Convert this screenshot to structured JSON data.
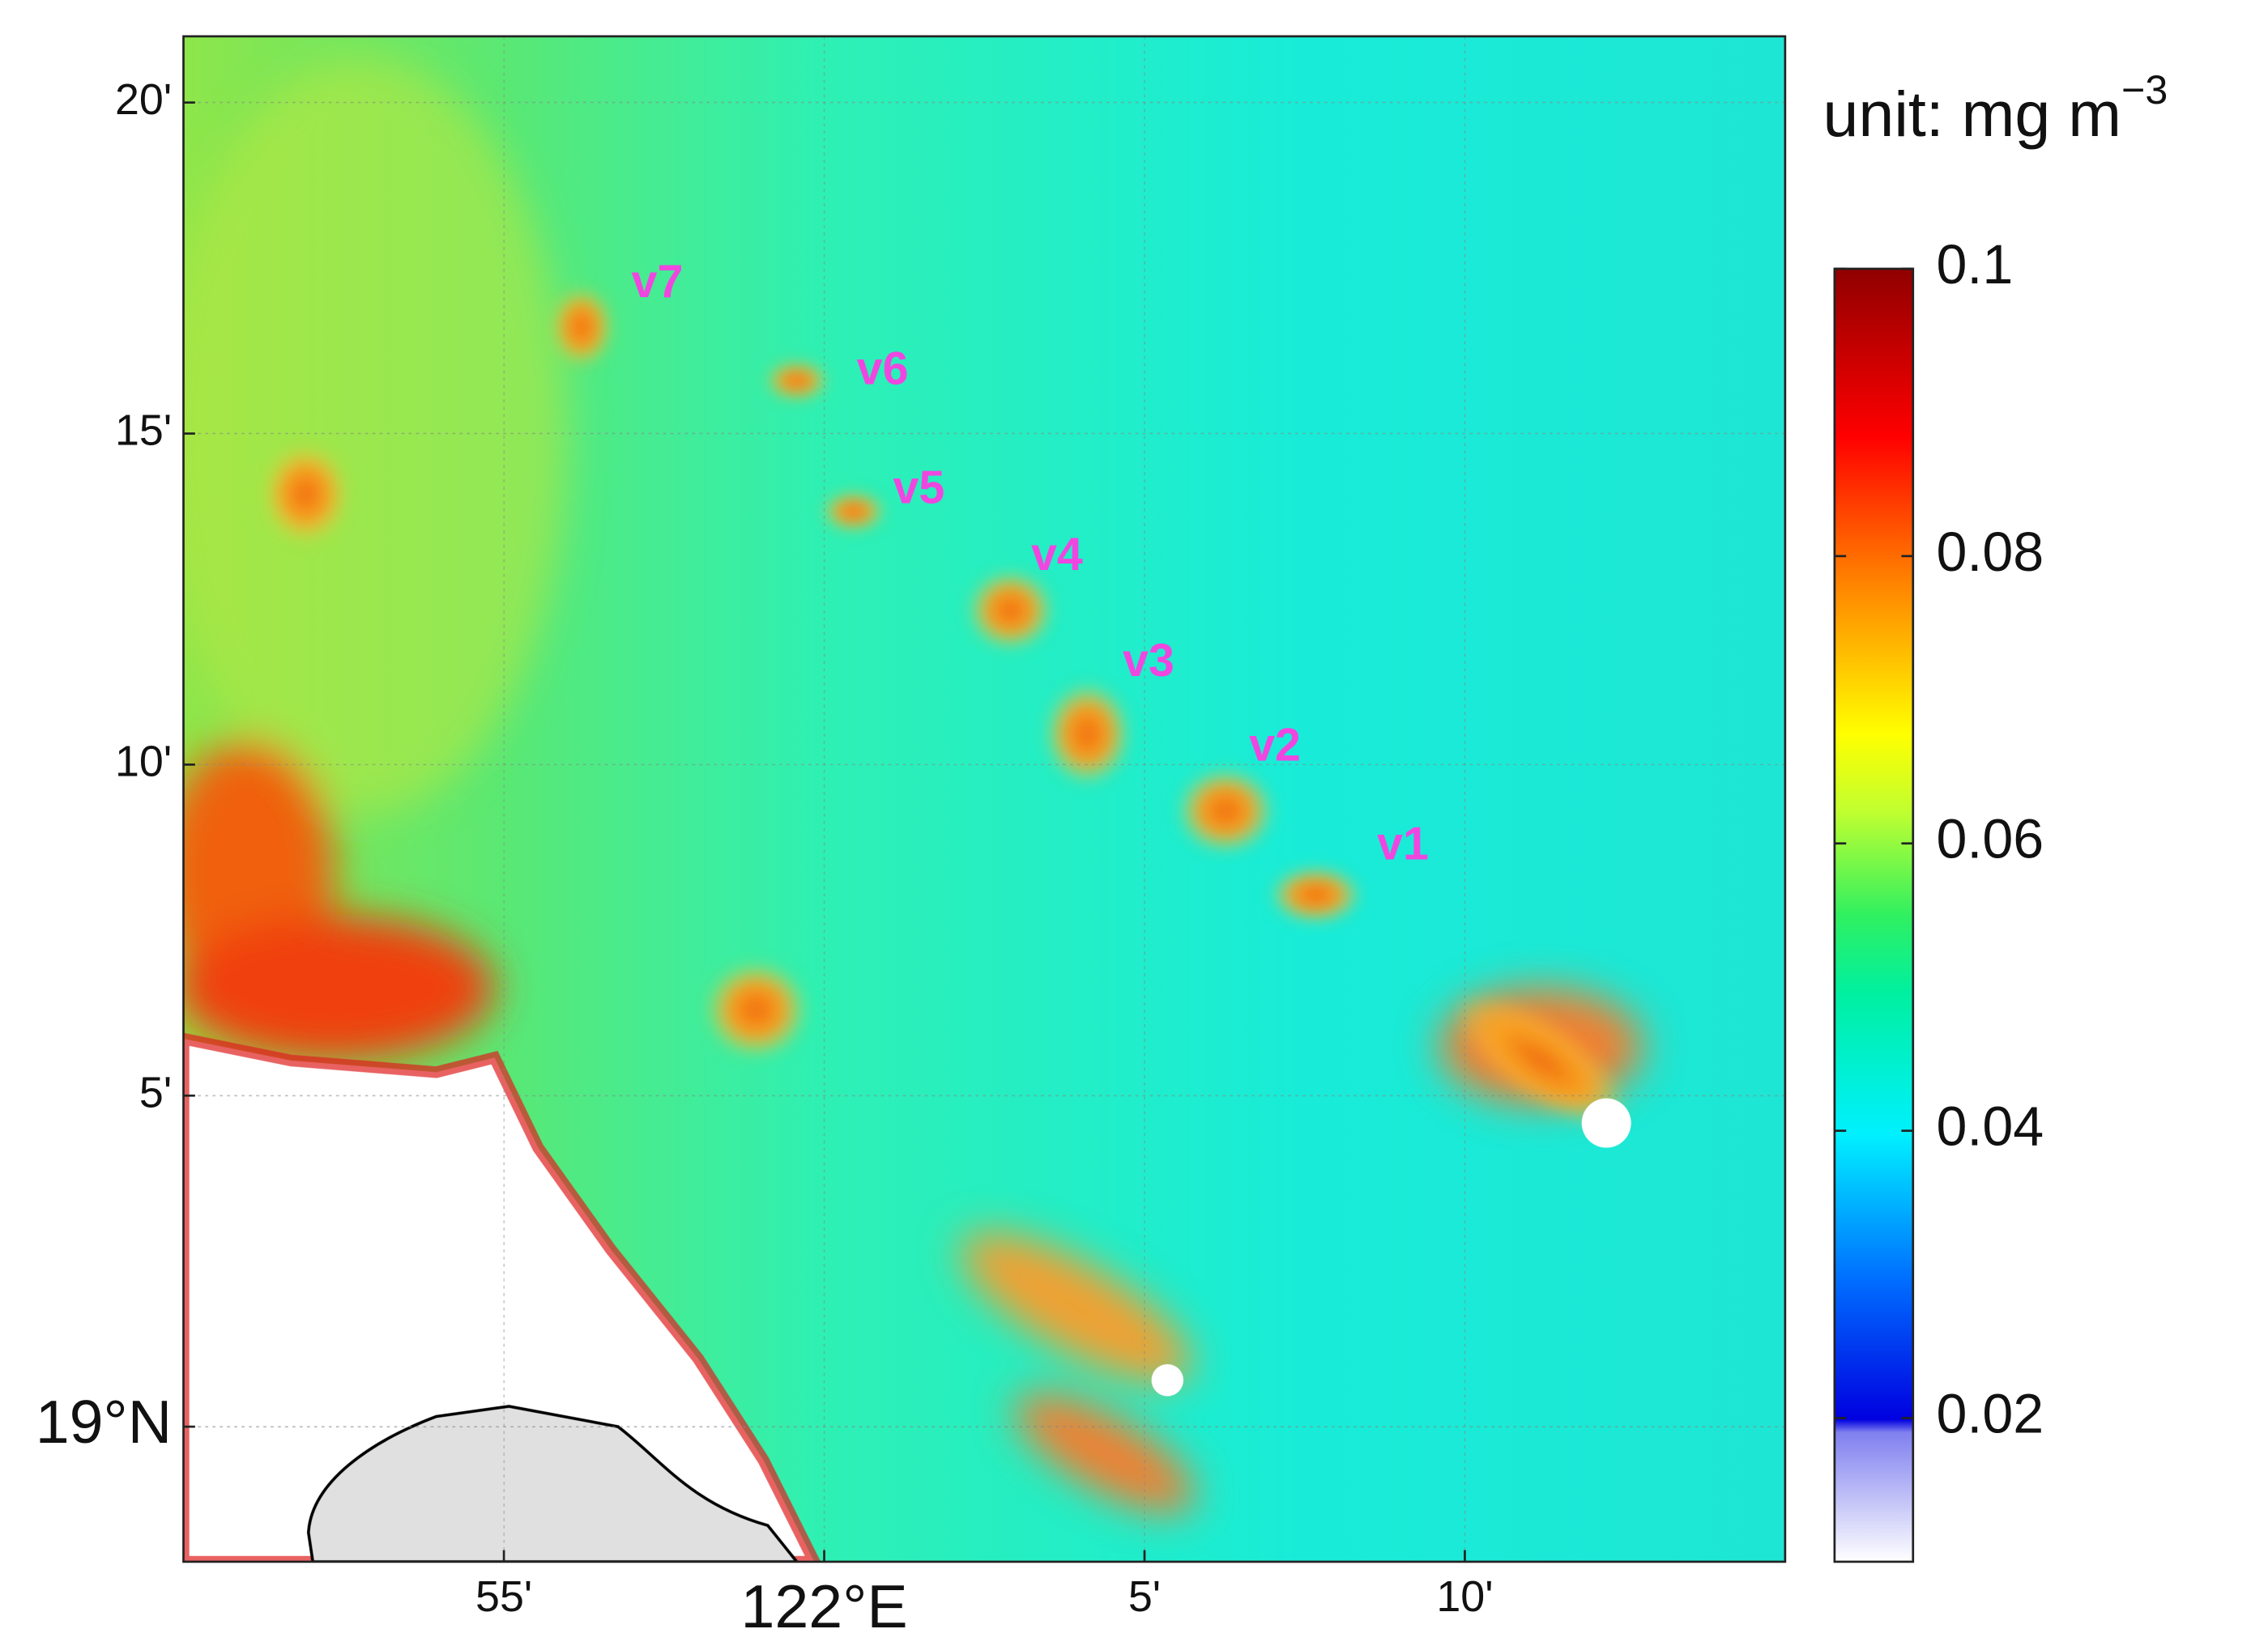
{
  "map": {
    "lat_lim": [
      18.966,
      19.35
    ],
    "lon_lim": [
      121.8333,
      122.25
    ],
    "lat_ticks": [
      {
        "value": 19,
        "label": "19°N"
      },
      {
        "value": 19.0833333,
        "label": "5'"
      },
      {
        "value": 19.1666667,
        "label": "10'"
      },
      {
        "value": 19.25,
        "label": "15'"
      },
      {
        "value": 19.3333333,
        "label": "20'"
      }
    ],
    "lon_ticks": [
      {
        "value": 121.9166667,
        "label": "55'"
      },
      {
        "value": 122,
        "label": "122°E"
      },
      {
        "value": 122.0833333,
        "label": "5'"
      },
      {
        "value": 122.1666667,
        "label": "10'"
      }
    ],
    "eddy_labels": [
      "v1",
      "v2",
      "v3",
      "v4",
      "v5",
      "v6",
      "v7"
    ]
  },
  "colorbar": {
    "unit": "unit: mg m",
    "unit_exponent": "−3",
    "lim": [
      0.01,
      0.1
    ],
    "ticks": [
      0.02,
      0.04,
      0.06,
      0.08,
      0.1
    ]
  }
}
